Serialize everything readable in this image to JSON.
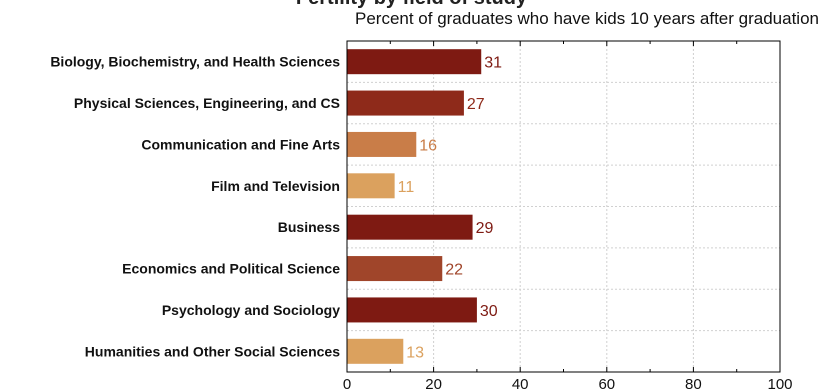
{
  "header": {
    "title": "Fertility by field of study",
    "subtitle": "Percent of graduates who have kids 10 years after graduation"
  },
  "chart_data": {
    "type": "bar",
    "orientation": "horizontal",
    "title": "Fertility by field of study",
    "subtitle": "Percent of graduates who have kids 10 years after graduation",
    "xlabel": "",
    "ylabel": "",
    "xlim": [
      0,
      100
    ],
    "x_ticks": [
      0,
      20,
      40,
      60,
      80,
      100
    ],
    "grid": true,
    "legend": "none",
    "categories": [
      "Biology, Biochemistry, and Health Sciences",
      "Physical Sciences, Engineering, and CS",
      "Communication and Fine Arts",
      "Film and Television",
      "Business",
      "Economics and Political Science",
      "Psychology and Sociology",
      "Humanities and Other Social Sciences"
    ],
    "values": [
      31,
      27,
      16,
      11,
      29,
      22,
      30,
      13
    ],
    "colors": [
      "#7e1a12",
      "#8e2a1a",
      "#c97d48",
      "#dba15e",
      "#7e1a12",
      "#a0452a",
      "#7e1a12",
      "#dba15e"
    ]
  }
}
